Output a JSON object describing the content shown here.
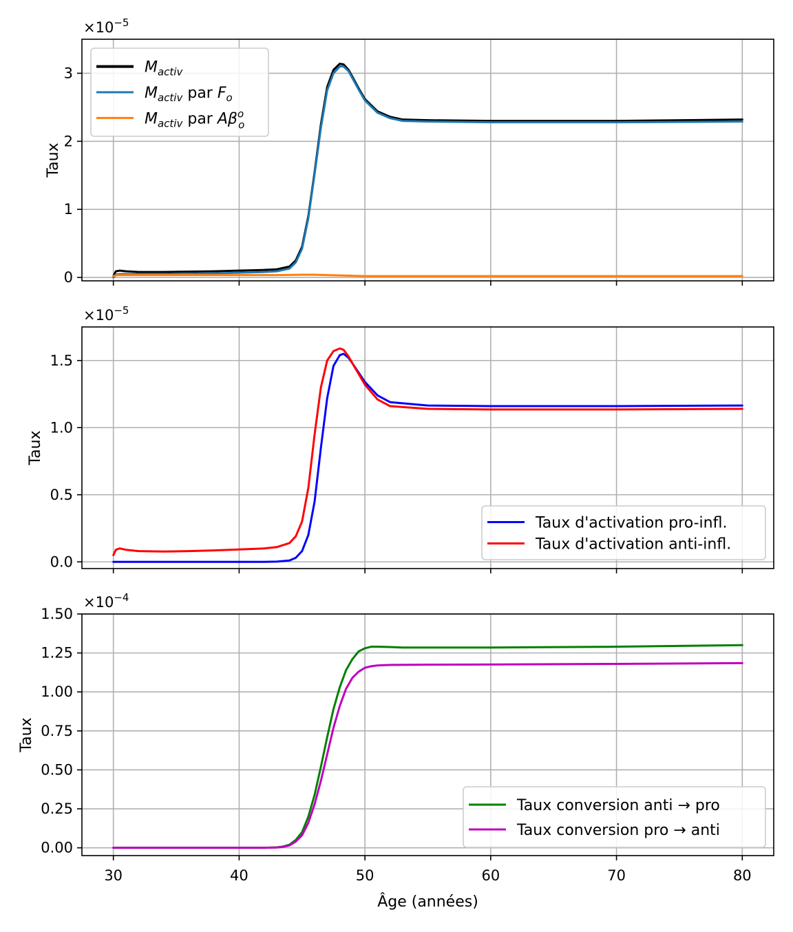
{
  "chart_data": [
    {
      "type": "line",
      "ylabel": "Taux",
      "multiplier_base": "×10",
      "multiplier_exp": "−5",
      "xlim": [
        27.5,
        82.5
      ],
      "ylim": [
        -0.05,
        3.5
      ],
      "xticks": [
        30,
        40,
        50,
        60,
        70,
        80
      ],
      "xtick_labels": [
        "30",
        "40",
        "50",
        "60",
        "70",
        "80"
      ],
      "yticks": [
        0,
        1,
        2,
        3
      ],
      "ytick_labels": [
        "0",
        "1",
        "2",
        "3"
      ],
      "grid": true,
      "legend_position": "top-left",
      "series": [
        {
          "name": "M_activ",
          "legend_base": "M",
          "legend_sub": "activ",
          "legend_rest": "",
          "color": "#000000",
          "x": [
            30,
            30.2,
            30.5,
            31,
            32,
            34,
            36,
            38,
            40,
            42,
            43,
            44,
            44.5,
            45,
            45.5,
            46,
            46.5,
            47,
            47.5,
            48,
            48.3,
            48.7,
            49,
            49.5,
            50,
            51,
            52,
            53,
            55,
            60,
            70,
            80
          ],
          "values": [
            0.02,
            0.09,
            0.1,
            0.09,
            0.08,
            0.08,
            0.085,
            0.09,
            0.1,
            0.11,
            0.12,
            0.16,
            0.25,
            0.45,
            0.9,
            1.55,
            2.25,
            2.8,
            3.05,
            3.14,
            3.13,
            3.05,
            2.95,
            2.78,
            2.62,
            2.44,
            2.36,
            2.32,
            2.31,
            2.3,
            2.3,
            2.32
          ]
        },
        {
          "name": "M_activ par F_o",
          "legend_base": "M",
          "legend_sub": "activ",
          "legend_rest": " par F",
          "legend_rest_sub": "o",
          "color": "#1f77b4",
          "x": [
            30,
            30.2,
            30.5,
            31,
            32,
            34,
            36,
            38,
            40,
            42,
            43,
            44,
            44.5,
            45,
            45.5,
            46,
            46.5,
            47,
            47.5,
            48,
            48.3,
            48.7,
            49,
            49.5,
            50,
            51,
            52,
            53,
            55,
            60,
            70,
            80
          ],
          "values": [
            0.0,
            0.04,
            0.05,
            0.05,
            0.05,
            0.05,
            0.055,
            0.06,
            0.07,
            0.08,
            0.09,
            0.13,
            0.22,
            0.42,
            0.87,
            1.52,
            2.2,
            2.75,
            3.0,
            3.1,
            3.1,
            3.03,
            2.93,
            2.76,
            2.6,
            2.42,
            2.34,
            2.3,
            2.29,
            2.28,
            2.28,
            2.29
          ]
        },
        {
          "name": "M_activ par Aβ_o^o",
          "legend_base": "M",
          "legend_sub": "activ",
          "legend_rest": " par Aβ",
          "legend_rest_sub": "o",
          "legend_rest_sup": "o",
          "color": "#ff7f0e",
          "x": [
            30,
            30.3,
            31,
            33,
            36,
            40,
            43,
            45,
            46,
            47,
            48,
            49,
            50,
            52,
            55,
            60,
            70,
            80
          ],
          "values": [
            0.02,
            0.035,
            0.035,
            0.035,
            0.035,
            0.035,
            0.035,
            0.04,
            0.04,
            0.035,
            0.03,
            0.025,
            0.02,
            0.02,
            0.02,
            0.02,
            0.02,
            0.02
          ]
        }
      ]
    },
    {
      "type": "line",
      "ylabel": "Taux",
      "multiplier_base": "×10",
      "multiplier_exp": "−5",
      "xlim": [
        27.5,
        82.5
      ],
      "ylim": [
        -0.05,
        1.75
      ],
      "xticks": [
        30,
        40,
        50,
        60,
        70,
        80
      ],
      "xtick_labels": [
        "30",
        "40",
        "50",
        "60",
        "70",
        "80"
      ],
      "yticks": [
        0,
        0.5,
        1.0,
        1.5
      ],
      "ytick_labels": [
        "0.0",
        "0.5",
        "1.0",
        "1.5"
      ],
      "grid": true,
      "legend_position": "bottom-right",
      "series": [
        {
          "name": "Taux d'activation pro-infl.",
          "color": "#0000ff",
          "x": [
            30,
            35,
            40,
            42,
            43,
            44,
            44.5,
            45,
            45.5,
            46,
            46.5,
            47,
            47.5,
            48,
            48.3,
            48.7,
            49,
            49.5,
            50,
            51,
            52,
            55,
            60,
            70,
            80
          ],
          "values": [
            0.0,
            0.0,
            0.0,
            0.0,
            0.002,
            0.01,
            0.03,
            0.08,
            0.2,
            0.45,
            0.85,
            1.22,
            1.46,
            1.54,
            1.55,
            1.52,
            1.48,
            1.41,
            1.34,
            1.24,
            1.19,
            1.165,
            1.16,
            1.16,
            1.165
          ]
        },
        {
          "name": "Taux d'activation anti-infl.",
          "color": "#ff0000",
          "x": [
            30,
            30.2,
            30.5,
            31,
            32,
            34,
            36,
            38,
            40,
            42,
            43,
            44,
            44.5,
            45,
            45.5,
            46,
            46.5,
            47,
            47.5,
            48,
            48.3,
            48.7,
            49,
            49.5,
            50,
            51,
            52,
            55,
            60,
            70,
            80
          ],
          "values": [
            0.05,
            0.09,
            0.1,
            0.09,
            0.08,
            0.077,
            0.08,
            0.085,
            0.092,
            0.1,
            0.11,
            0.14,
            0.19,
            0.3,
            0.55,
            0.95,
            1.3,
            1.5,
            1.57,
            1.59,
            1.58,
            1.53,
            1.48,
            1.4,
            1.32,
            1.21,
            1.16,
            1.14,
            1.135,
            1.135,
            1.14
          ]
        }
      ]
    },
    {
      "type": "line",
      "ylabel": "Taux",
      "xlabel": "Âge (années)",
      "multiplier_base": "×10",
      "multiplier_exp": "−4",
      "xlim": [
        27.5,
        82.5
      ],
      "ylim": [
        -0.05,
        1.5
      ],
      "xticks": [
        30,
        40,
        50,
        60,
        70,
        80
      ],
      "xtick_labels": [
        "30",
        "40",
        "50",
        "60",
        "70",
        "80"
      ],
      "yticks": [
        0,
        0.25,
        0.5,
        0.75,
        1.0,
        1.25,
        1.5
      ],
      "ytick_labels": [
        "0.00",
        "0.25",
        "0.50",
        "0.75",
        "1.00",
        "1.25",
        "1.50"
      ],
      "grid": true,
      "legend_position": "bottom-right",
      "series": [
        {
          "name": "Taux conversion anti → pro",
          "color": "#008000",
          "x": [
            30,
            35,
            40,
            42,
            43,
            43.5,
            44,
            44.5,
            45,
            45.5,
            46,
            46.5,
            47,
            47.5,
            48,
            48.5,
            49,
            49.5,
            50,
            50.5,
            51,
            52,
            53,
            55,
            60,
            70,
            80
          ],
          "values": [
            0.0,
            0.0,
            0.0,
            0.0,
            0.003,
            0.008,
            0.02,
            0.05,
            0.1,
            0.2,
            0.34,
            0.52,
            0.71,
            0.89,
            1.03,
            1.14,
            1.21,
            1.26,
            1.28,
            1.29,
            1.29,
            1.288,
            1.285,
            1.285,
            1.285,
            1.29,
            1.3
          ]
        },
        {
          "name": "Taux conversion pro → anti",
          "color": "#bf00bf",
          "x": [
            30,
            35,
            40,
            42,
            43,
            43.5,
            44,
            44.5,
            45,
            45.5,
            46,
            46.5,
            47,
            47.5,
            48,
            48.5,
            49,
            49.5,
            50,
            50.5,
            51,
            52,
            53,
            55,
            60,
            70,
            80
          ],
          "values": [
            0.0,
            0.0,
            0.0,
            0.0,
            0.002,
            0.006,
            0.015,
            0.04,
            0.08,
            0.16,
            0.28,
            0.43,
            0.6,
            0.77,
            0.91,
            1.02,
            1.09,
            1.13,
            1.155,
            1.165,
            1.17,
            1.173,
            1.174,
            1.175,
            1.176,
            1.18,
            1.185
          ]
        }
      ]
    }
  ]
}
